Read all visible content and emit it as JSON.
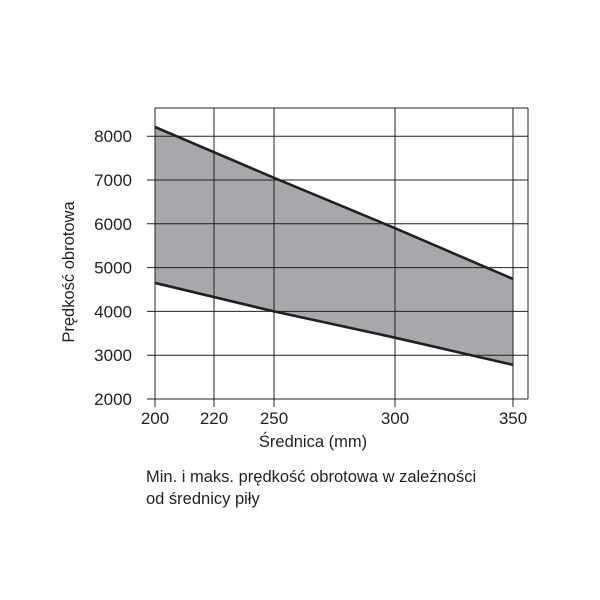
{
  "chart_data": {
    "type": "area",
    "title": "",
    "xlabel": "Średnica (mm)",
    "ylabel": "Prędkość obrotowa",
    "x_ticks": [
      200,
      220,
      250,
      300,
      350
    ],
    "y_ticks": [
      2000,
      3000,
      4000,
      5000,
      6000,
      7000,
      8000
    ],
    "ylim": [
      2000,
      8650
    ],
    "grid": true,
    "series": [
      {
        "role": "max",
        "x": [
          200,
          250,
          300,
          350
        ],
        "y": [
          8210,
          7050,
          5900,
          4740
        ]
      },
      {
        "role": "min",
        "x": [
          200,
          250,
          300,
          350
        ],
        "y": [
          4650,
          4000,
          3400,
          2780
        ]
      }
    ],
    "band_fill": "#a7a8ab",
    "line_color": "#231f20",
    "caption": [
      "Min. i maks. prędkość obrotowa w zależności",
      "od średnicy piły"
    ]
  }
}
